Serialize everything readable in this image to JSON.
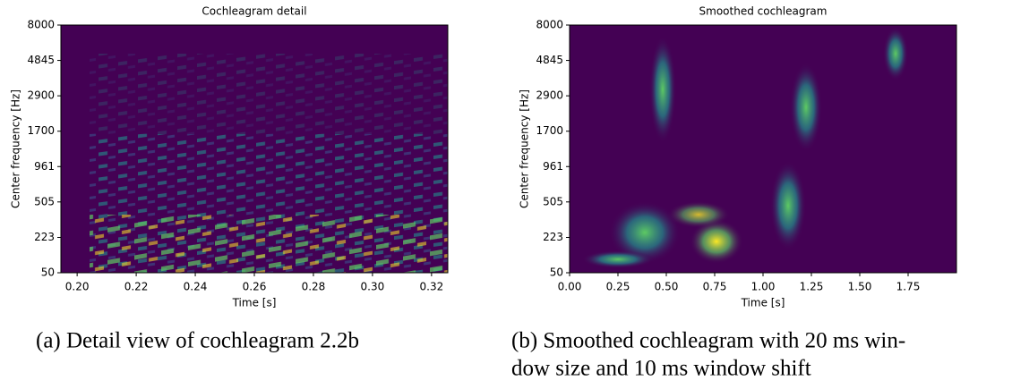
{
  "chart_data": [
    {
      "type": "heatmap",
      "title": "Cochleagram detail",
      "xlabel": "Time [s]",
      "ylabel": "Center frequency [Hz]",
      "xlim": [
        0.1945,
        0.3255
      ],
      "xticks": [
        {
          "value": 0.2,
          "label": "0.20"
        },
        {
          "value": 0.22,
          "label": "0.22"
        },
        {
          "value": 0.24,
          "label": "0.24"
        },
        {
          "value": 0.26,
          "label": "0.26"
        },
        {
          "value": 0.28,
          "label": "0.28"
        },
        {
          "value": 0.3,
          "label": "0.30"
        },
        {
          "value": 0.32,
          "label": "0.32"
        }
      ],
      "ylim": [
        50,
        8000
      ],
      "yscale": "erb",
      "yticks": [
        50,
        223,
        505,
        961,
        1700,
        2900,
        4845,
        8000
      ],
      "colormap": [
        "#440154",
        "#3b528b",
        "#21918c",
        "#5ec962",
        "#fde725"
      ],
      "caption": [
        "(a) Detail view of cochleagram 2.2b"
      ]
    },
    {
      "type": "heatmap",
      "title": "Smoothed cochleagram",
      "xlabel": "Time [s]",
      "ylabel": "Center frequency [Hz]",
      "xlim": [
        0,
        2.0
      ],
      "xticks": [
        {
          "value": 0,
          "label": "0.00"
        },
        {
          "value": 0.25,
          "label": "0.25"
        },
        {
          "value": 0.5,
          "label": "0.50"
        },
        {
          "value": 0.75,
          "label": "0.75"
        },
        {
          "value": 1,
          "label": "1.00"
        },
        {
          "value": 1.25,
          "label": "1.25"
        },
        {
          "value": 1.5,
          "label": "1.50"
        },
        {
          "value": 1.75,
          "label": "1.75"
        }
      ],
      "ylim": [
        50,
        8000
      ],
      "yscale": "erb",
      "yticks": [
        50,
        223,
        505,
        961,
        1700,
        2900,
        4845,
        8000
      ],
      "colormap": [
        "#440154",
        "#3b528b",
        "#21918c",
        "#5ec962",
        "#fde725"
      ],
      "caption": [
        "(b) Smoothed cochleagram with 20 ms win-",
        "dow size and 10 ms window shift"
      ]
    }
  ]
}
